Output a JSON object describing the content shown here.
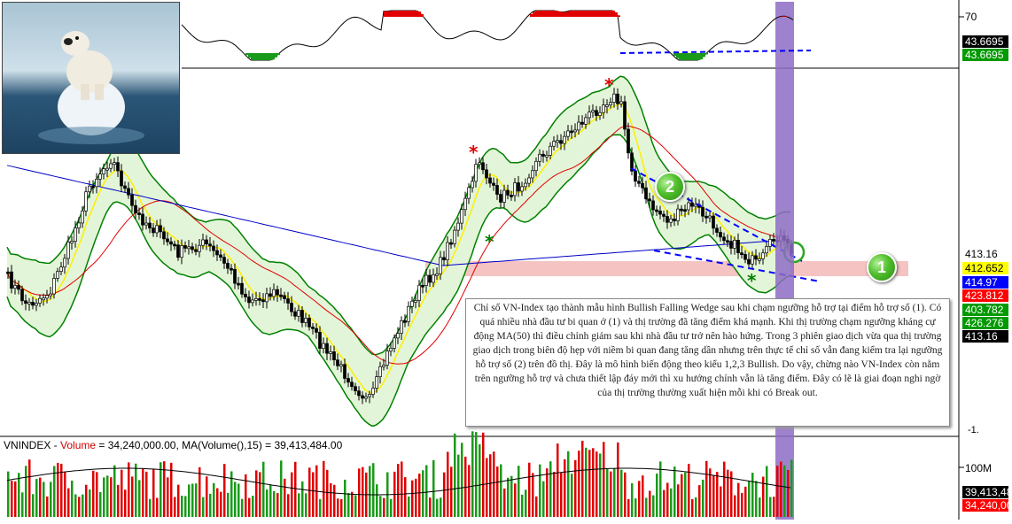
{
  "chart_data": [
    {
      "type": "line",
      "panel": "oscillator",
      "title": "",
      "ytick_labels": [
        "70"
      ],
      "current_value_labels": [
        "43.6695",
        "43.6695"
      ],
      "note": "RSI-style oscillator line with a dashed blue support trendline along the recent lows"
    },
    {
      "type": "candlestick",
      "panel": "price",
      "title": "",
      "ylabel": "",
      "price_labels": [
        {
          "value": "413.16",
          "color": "#ffffff",
          "text_color": "#000000"
        },
        {
          "value": "412.652",
          "color": "#ffff00",
          "text_color": "#000000"
        },
        {
          "value": "414.97",
          "color": "#0000ff",
          "text_color": "#ffffff"
        },
        {
          "value": "423.812",
          "color": "#ff0000",
          "text_color": "#ffffff"
        },
        {
          "value": "403.782",
          "color": "#009900",
          "text_color": "#ffffff"
        },
        {
          "value": "426.276",
          "color": "#009900",
          "text_color": "#ffffff"
        },
        {
          "value": "413.16",
          "color": "#000000",
          "text_color": "#ffffff"
        }
      ],
      "overlays": [
        "Bollinger Bands (green fill)",
        "MA short (yellow)",
        "MA50 (red)",
        "MA200 (blue)"
      ],
      "support_zone": "pink horizontal band marked (1)",
      "pattern": "Bullish Falling Wedge marked (2)",
      "markers": {
        "star_red": "*",
        "star_green": "*",
        "support_label": "1",
        "wedge_label": "2"
      }
    },
    {
      "type": "bar",
      "panel": "volume",
      "series": [
        {
          "name": "Volume",
          "last_value": "34,240,000.00"
        },
        {
          "name": "MA(Volume(),15)",
          "last_value": "39,413,484.00"
        }
      ],
      "ytick_labels": [
        "100M"
      ],
      "current_value_labels": [
        "39,413,48",
        "34,240,00"
      ]
    }
  ],
  "volume_title": {
    "prefix": "VNINDEX - ",
    "volume_label": "Volume",
    "volume_value": " = 34,240,000.00, MA(Volume(),15) = 39,413,484.00"
  },
  "annotation_text": "Chỉ số VN-Index tạo thành mẫu hình Bullish Falling Wedge sau khi chạm ngưỡng hỗ trợ tại điểm hỗ trợ số (1). Có quá nhiều nhà đầu tư bi quan ở (1) và thị trường đã tăng điểm khá mạnh. Khi thị trường chạm ngưỡng kháng cự động MA(50) thì điều chỉnh giảm sau khi nhà đầu tư trở nên hào hứng. Trong 3 phiên giao dịch vừa qua thị trường giao dịch trong biên độ hẹp với niềm bi quan đang tăng dần nhưng trên thực tế chỉ số vẫn đang kiểm tra lại ngưỡng hỗ trợ số (2) trên đồ thị. Đây là mô hình biến động theo kiểu 1,2,3 Bullish. Do vậy, chừng nào VN-Index còn nằm trên ngưỡng hỗ trợ và chưa thiết lập đáy mới thì xu hướng chính vẫn là tăng điểm. Đây có lẽ là giai đoạn nghi ngờ của thị trường thường xuất hiện mỗi khi có Break out.",
  "misc": {
    "axis_tick_small": "-1."
  },
  "colors": {
    "bollinger_fill": "#e3f5d8",
    "bollinger_line": "#008000",
    "ma_short": "#ffee00",
    "ma50": "#e00000",
    "ma200": "#0000c8",
    "support_band": "#f5b8b8",
    "highlight_column": "#8e6cc4",
    "trendline": "#0000ff"
  }
}
